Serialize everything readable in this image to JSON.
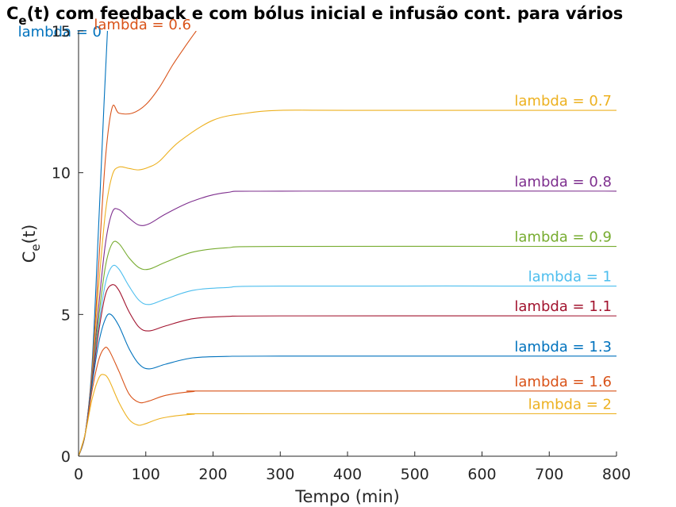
{
  "chart_data": {
    "type": "line",
    "title_main": "C",
    "title_sub": "e",
    "title_rest": "(t) com feedback e com bólus inicial e infusão cont. para vários",
    "xlabel": "Tempo (min)",
    "ylabel_main": "C",
    "ylabel_sub": "e",
    "ylabel_rest": "(t)",
    "xlim": [
      0,
      800
    ],
    "ylim": [
      0,
      15
    ],
    "xticks": [
      "0",
      "100",
      "200",
      "300",
      "400",
      "500",
      "600",
      "700",
      "800"
    ],
    "yticks": [
      "0",
      "5",
      "10",
      "15"
    ],
    "grid": false,
    "legend": "inline labels",
    "series": [
      {
        "name": "lambda = 0",
        "color": "#0072BD",
        "points": [
          [
            0,
            0
          ],
          [
            10,
            0.8
          ],
          [
            20,
            3.2
          ],
          [
            30,
            8.2
          ],
          [
            38,
            12.5
          ],
          [
            43,
            15
          ]
        ]
      },
      {
        "name": "lambda = 0.6",
        "color": "#D95319",
        "points": [
          [
            0,
            0
          ],
          [
            10,
            0.8
          ],
          [
            20,
            3.0
          ],
          [
            30,
            6.8
          ],
          [
            40,
            10.5
          ],
          [
            50,
            12.3
          ],
          [
            60,
            12.1
          ],
          [
            80,
            12.1
          ],
          [
            100,
            12.4
          ],
          [
            120,
            13.0
          ],
          [
            140,
            13.8
          ],
          [
            160,
            14.5
          ],
          [
            175,
            15
          ]
        ]
      },
      {
        "name": "lambda = 0.7",
        "color": "#EDB120",
        "points": [
          [
            0,
            0
          ],
          [
            10,
            0.8
          ],
          [
            20,
            2.9
          ],
          [
            30,
            6.0
          ],
          [
            40,
            8.6
          ],
          [
            50,
            9.9
          ],
          [
            60,
            10.2
          ],
          [
            75,
            10.15
          ],
          [
            90,
            10.1
          ],
          [
            105,
            10.2
          ],
          [
            120,
            10.4
          ],
          [
            150,
            11.1
          ],
          [
            200,
            11.85
          ],
          [
            250,
            12.1
          ],
          [
            300,
            12.2
          ],
          [
            400,
            12.2
          ],
          [
            800,
            12.2
          ]
        ]
      },
      {
        "name": "lambda = 0.8",
        "color": "#7E2F8E",
        "points": [
          [
            0,
            0
          ],
          [
            10,
            0.8
          ],
          [
            20,
            2.8
          ],
          [
            30,
            5.3
          ],
          [
            40,
            7.5
          ],
          [
            50,
            8.6
          ],
          [
            60,
            8.7
          ],
          [
            75,
            8.4
          ],
          [
            90,
            8.15
          ],
          [
            105,
            8.2
          ],
          [
            130,
            8.55
          ],
          [
            170,
            9.0
          ],
          [
            220,
            9.3
          ],
          [
            300,
            9.35
          ],
          [
            800,
            9.35
          ]
        ]
      },
      {
        "name": "lambda = 0.9",
        "color": "#77AC30",
        "points": [
          [
            0,
            0
          ],
          [
            10,
            0.8
          ],
          [
            20,
            2.7
          ],
          [
            30,
            4.9
          ],
          [
            40,
            6.7
          ],
          [
            50,
            7.5
          ],
          [
            60,
            7.5
          ],
          [
            75,
            7.0
          ],
          [
            90,
            6.65
          ],
          [
            105,
            6.6
          ],
          [
            130,
            6.85
          ],
          [
            170,
            7.2
          ],
          [
            220,
            7.35
          ],
          [
            300,
            7.4
          ],
          [
            800,
            7.4
          ]
        ]
      },
      {
        "name": "lambda = 1",
        "color": "#4DBEEE",
        "points": [
          [
            0,
            0
          ],
          [
            10,
            0.8
          ],
          [
            20,
            2.6
          ],
          [
            30,
            4.6
          ],
          [
            40,
            6.1
          ],
          [
            50,
            6.7
          ],
          [
            60,
            6.6
          ],
          [
            75,
            6.0
          ],
          [
            90,
            5.5
          ],
          [
            105,
            5.35
          ],
          [
            130,
            5.55
          ],
          [
            170,
            5.85
          ],
          [
            220,
            5.95
          ],
          [
            300,
            6.0
          ],
          [
            800,
            6.0
          ]
        ]
      },
      {
        "name": "lambda = 1.1",
        "color": "#A2142F",
        "points": [
          [
            0,
            0
          ],
          [
            10,
            0.8
          ],
          [
            20,
            2.6
          ],
          [
            30,
            4.4
          ],
          [
            40,
            5.7
          ],
          [
            50,
            6.05
          ],
          [
            60,
            5.85
          ],
          [
            75,
            5.1
          ],
          [
            90,
            4.55
          ],
          [
            105,
            4.42
          ],
          [
            130,
            4.6
          ],
          [
            170,
            4.85
          ],
          [
            220,
            4.93
          ],
          [
            300,
            4.95
          ],
          [
            800,
            4.95
          ]
        ]
      },
      {
        "name": "lambda = 1.3",
        "color": "#0072BD",
        "points": [
          [
            0,
            0
          ],
          [
            10,
            0.8
          ],
          [
            20,
            2.5
          ],
          [
            30,
            4.0
          ],
          [
            40,
            4.85
          ],
          [
            48,
            5.0
          ],
          [
            60,
            4.6
          ],
          [
            75,
            3.8
          ],
          [
            90,
            3.25
          ],
          [
            105,
            3.08
          ],
          [
            130,
            3.25
          ],
          [
            170,
            3.47
          ],
          [
            220,
            3.52
          ],
          [
            300,
            3.53
          ],
          [
            800,
            3.53
          ]
        ]
      },
      {
        "name": "lambda = 1.6",
        "color": "#D95319",
        "points": [
          [
            0,
            0
          ],
          [
            10,
            0.8
          ],
          [
            20,
            2.3
          ],
          [
            30,
            3.4
          ],
          [
            38,
            3.8
          ],
          [
            45,
            3.75
          ],
          [
            60,
            3.0
          ],
          [
            75,
            2.2
          ],
          [
            90,
            1.9
          ],
          [
            105,
            1.95
          ],
          [
            130,
            2.15
          ],
          [
            170,
            2.28
          ],
          [
            220,
            2.3
          ],
          [
            800,
            2.3
          ]
        ]
      },
      {
        "name": "lambda = 2",
        "color": "#EDB120",
        "points": [
          [
            0,
            0
          ],
          [
            10,
            0.8
          ],
          [
            20,
            2.0
          ],
          [
            30,
            2.75
          ],
          [
            37,
            2.88
          ],
          [
            45,
            2.7
          ],
          [
            60,
            1.9
          ],
          [
            75,
            1.3
          ],
          [
            88,
            1.1
          ],
          [
            100,
            1.15
          ],
          [
            125,
            1.35
          ],
          [
            170,
            1.48
          ],
          [
            220,
            1.5
          ],
          [
            800,
            1.5
          ]
        ]
      }
    ]
  }
}
